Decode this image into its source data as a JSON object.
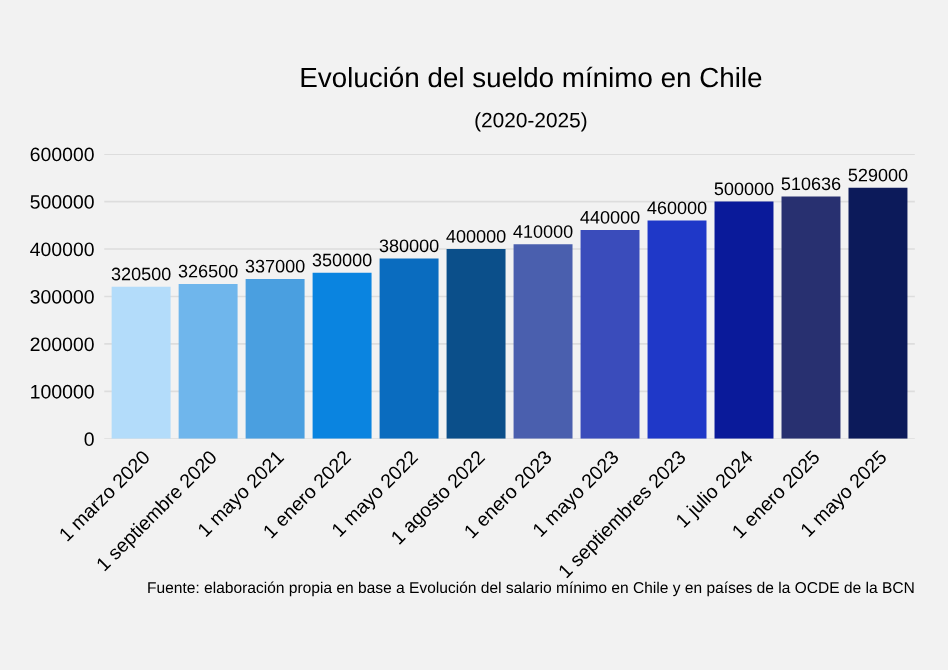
{
  "chart_data": {
    "type": "bar",
    "title": "Evolución del sueldo mínimo en Chile",
    "subtitle": "(2020-2025)",
    "categories": [
      "1 marzo 2020",
      "1 septiembre 2020",
      "1 mayo 2021",
      "1 enero 2022",
      "1 mayo 2022",
      "1 agosto 2022",
      "1 enero 2023",
      "1 mayo 2023",
      "1 septiembres 2023",
      "1 julio 2024",
      "1 enero 2025",
      "1 mayo 2025"
    ],
    "values": [
      320500,
      326500,
      337000,
      350000,
      380000,
      400000,
      410000,
      440000,
      460000,
      500000,
      510636,
      529000
    ],
    "colors": [
      "#b3dcfa",
      "#6fb6ec",
      "#4a9fe0",
      "#0a84e0",
      "#0a6cbf",
      "#0b4f8a",
      "#4a5fae",
      "#3a4cbb",
      "#1f38c8",
      "#0a1a9a",
      "#283070",
      "#0c1a5a"
    ],
    "ylim": [
      0,
      600000
    ],
    "yticks": [
      0,
      100000,
      200000,
      300000,
      400000,
      500000,
      600000
    ],
    "grid": "y",
    "data_labels": true,
    "annotations": [
      "Fuente: elaboración propia en base a Evolución del salario mínimo en Chile y en países de la OCDE de la BCN"
    ]
  }
}
